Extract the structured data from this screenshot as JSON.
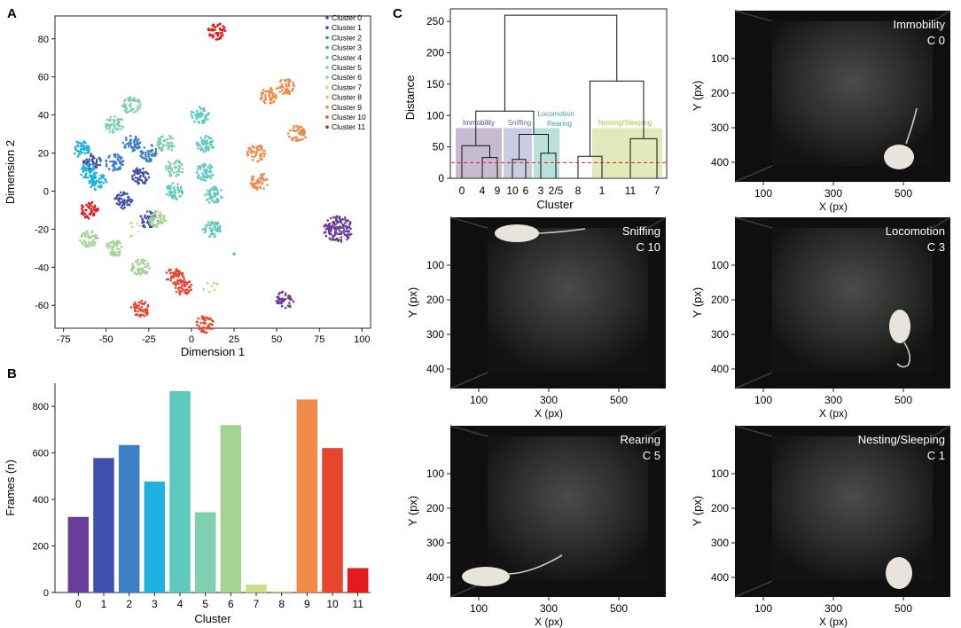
{
  "panels": {
    "a": {
      "letter": "A",
      "xlabel": "Dimension 1",
      "ylabel": "Dimension 2",
      "xticks": [
        -75,
        -50,
        -25,
        0,
        25,
        50,
        75,
        100
      ],
      "yticks": [
        -60,
        -40,
        -20,
        0,
        20,
        40,
        60,
        80
      ],
      "legend": [
        "Cluster 0",
        "Cluster 1",
        "Cluster 2",
        "Cluster 3",
        "Cluster 4",
        "Cluster 5",
        "Cluster 6",
        "Cluster 7",
        "Cluster 8",
        "Cluster 9",
        "Cluster 10",
        "Cluster 11"
      ]
    },
    "b": {
      "letter": "B",
      "xlabel": "Cluster",
      "ylabel": "Frames (n)",
      "yticks": [
        0,
        200,
        400,
        600,
        800
      ]
    },
    "c": {
      "letter": "C",
      "xlabel": "Cluster",
      "ylabel": "Distance",
      "yticks": [
        0,
        50,
        100,
        150,
        200,
        250
      ],
      "leaf_labels": [
        "0",
        "4",
        "9",
        "10",
        "6",
        "3",
        "2/5",
        "8",
        "1",
        "11",
        "7"
      ],
      "groups": [
        {
          "label": "Immobility",
          "color": "#5e3c7e"
        },
        {
          "label": "Sniffing",
          "color": "#6a6aa8"
        },
        {
          "label": "Locomotion",
          "color": "#3aa79a"
        },
        {
          "label": "Rearing",
          "color": "#3aa79a"
        },
        {
          "label": "Nesting/Sleeping",
          "color": "#a7c43a"
        }
      ]
    },
    "frames": {
      "xlabel": "X (px)",
      "ylabel": "Y (px)",
      "xticks": [
        "100",
        "300",
        "500"
      ],
      "yticks": [
        "100",
        "200",
        "300",
        "400"
      ],
      "items": [
        {
          "behavior": "Immobility",
          "cluster": "C 0"
        },
        {
          "behavior": "Sniffing",
          "cluster": "C 10"
        },
        {
          "behavior": "Locomotion",
          "cluster": "C 3"
        },
        {
          "behavior": "Rearing",
          "cluster": "C 5"
        },
        {
          "behavior": "Nesting/Sleeping",
          "cluster": "C 1"
        }
      ]
    }
  },
  "colors": {
    "clusters": [
      "#6a3d9a",
      "#3f4fad",
      "#3d7fc4",
      "#1fb2e0",
      "#5fc9bd",
      "#7fd0b0",
      "#a4d392",
      "#c9df8a",
      "#f0c070",
      "#f08a4b",
      "#e8452e",
      "#e41a1c"
    ],
    "dendro_threshold": "#e41a1c"
  },
  "chart_data": [
    {
      "panel": "A",
      "type": "scatter",
      "xlabel": "Dimension 1",
      "ylabel": "Dimension 2",
      "xlim": [
        -80,
        105
      ],
      "ylim": [
        -72,
        92
      ],
      "legend_position": "top-right",
      "clusters": [
        {
          "name": "Cluster 0",
          "centers": [
            [
              86,
              -20
            ],
            [
              55,
              -57
            ]
          ]
        },
        {
          "name": "Cluster 1",
          "centers": [
            [
              -40,
              -5
            ],
            [
              -30,
              8
            ],
            [
              -25,
              -15
            ],
            [
              -58,
              15
            ]
          ]
        },
        {
          "name": "Cluster 2",
          "centers": [
            [
              -45,
              15
            ],
            [
              -35,
              25
            ],
            [
              -25,
              20
            ]
          ]
        },
        {
          "name": "Cluster 3",
          "centers": [
            [
              -65,
              22
            ],
            [
              -60,
              10
            ],
            [
              -55,
              5
            ]
          ]
        },
        {
          "name": "Cluster 4",
          "centers": [
            [
              8,
              25
            ],
            [
              8,
              10
            ],
            [
              13,
              -2
            ],
            [
              12,
              -20
            ],
            [
              -10,
              0
            ],
            [
              5,
              40
            ]
          ]
        },
        {
          "name": "Cluster 5",
          "centers": [
            [
              -35,
              45
            ],
            [
              -45,
              35
            ],
            [
              -15,
              25
            ],
            [
              -10,
              12
            ]
          ]
        },
        {
          "name": "Cluster 6",
          "centers": [
            [
              -60,
              -25
            ],
            [
              -45,
              -30
            ],
            [
              -30,
              -40
            ],
            [
              -20,
              -15
            ]
          ]
        },
        {
          "name": "Cluster 7",
          "centers": [
            [
              -35,
              -20
            ]
          ]
        },
        {
          "name": "Cluster 8",
          "centers": [
            [
              10,
              -50
            ]
          ]
        },
        {
          "name": "Cluster 9",
          "centers": [
            [
              45,
              50
            ],
            [
              55,
              55
            ],
            [
              62,
              30
            ],
            [
              38,
              20
            ],
            [
              40,
              5
            ]
          ]
        },
        {
          "name": "Cluster 10",
          "centers": [
            [
              -5,
              -50
            ],
            [
              -30,
              -62
            ],
            [
              8,
              -70
            ],
            [
              -10,
              -45
            ]
          ]
        },
        {
          "name": "Cluster 11",
          "centers": [
            [
              15,
              84
            ],
            [
              -60,
              -10
            ]
          ]
        }
      ],
      "extra_points": [
        {
          "name": "Cluster 3",
          "x": 25,
          "y": -33
        }
      ]
    },
    {
      "panel": "B",
      "type": "bar",
      "xlabel": "Cluster",
      "ylabel": "Frames (n)",
      "categories": [
        "0",
        "1",
        "2",
        "3",
        "4",
        "5",
        "6",
        "7",
        "8",
        "9",
        "10",
        "11"
      ],
      "values": [
        325,
        578,
        634,
        477,
        866,
        345,
        720,
        34,
        5,
        830,
        621,
        105
      ],
      "ylim": [
        0,
        900
      ]
    },
    {
      "panel": "C",
      "type": "dendrogram",
      "xlabel": "Cluster",
      "ylabel": "Distance",
      "ylim": [
        0,
        270
      ],
      "leaves": [
        "0",
        "4",
        "9",
        "10",
        "6",
        "3",
        "2/5",
        "8",
        "1",
        "11",
        "7"
      ],
      "threshold": 25,
      "merges": [
        {
          "a": "4",
          "b": "9",
          "height": 33
        },
        {
          "a": "0",
          "b": "4+9",
          "height": 52
        },
        {
          "a": "10",
          "b": "6",
          "height": 30
        },
        {
          "a": "3",
          "b": "2/5",
          "height": 40
        },
        {
          "a": "10+6",
          "b": "3+2/5",
          "height": 70
        },
        {
          "a": "0+4+9",
          "b": "10+6+3+2/5",
          "height": 107
        },
        {
          "a": "8",
          "b": "1",
          "height": 35
        },
        {
          "a": "11",
          "b": "7",
          "height": 63
        },
        {
          "a": "8+1",
          "b": "11+7",
          "height": 155
        },
        {
          "a": "left",
          "b": "right",
          "height": 260
        }
      ],
      "groups": [
        {
          "label": "Immobility",
          "leaves": [
            "0",
            "4",
            "9"
          ]
        },
        {
          "label": "Sniffing",
          "leaves": [
            "10",
            "6"
          ]
        },
        {
          "label": "Locomotion",
          "leaves": [
            "3"
          ]
        },
        {
          "label": "Rearing",
          "leaves": [
            "2/5"
          ]
        },
        {
          "label": "Nesting/Sleeping",
          "leaves": [
            "8",
            "1",
            "11",
            "7"
          ]
        }
      ]
    }
  ]
}
